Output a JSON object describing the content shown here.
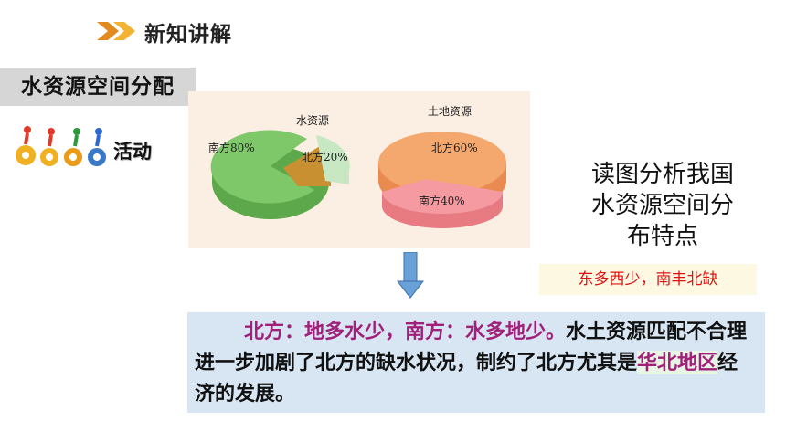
{
  "header": {
    "title": "新知讲解",
    "arrow_icon": "double-chevron-right-icon"
  },
  "section": {
    "label": "水资源空间分配"
  },
  "activity": {
    "label": "活动",
    "icon": "running-gears-icon"
  },
  "charts": {
    "water": {
      "title": "水资源",
      "slices": [
        {
          "label": "南方80%",
          "value": 80,
          "color": "#7ec86a"
        },
        {
          "label": "北方20%",
          "value": 20,
          "color": "#c8e8c4"
        }
      ],
      "pull_color": "#c89030"
    },
    "land": {
      "title": "土地资源",
      "slices": [
        {
          "label": "北方60%",
          "value": 60,
          "color": "#f5a86e"
        },
        {
          "label": "南方40%",
          "value": 40,
          "color": "#f49aa0"
        }
      ]
    }
  },
  "question": {
    "text": "读图分析我国水资源空间分布特点"
  },
  "answer": {
    "text": "东多西少，南丰北缺"
  },
  "summary": {
    "highlight": "北方：地多水少，南方：水多地少。",
    "text1": "水土资源匹配不合理进一步加剧了北方的缺水状况，制约了北方尤其是",
    "region": "华北地区",
    "text2": "经济的发展。"
  },
  "colors": {
    "accent": "#a0207a",
    "answer_red": "#dd1111",
    "panel_bg": "#fbeee2",
    "summary_bg": "#d8e6f3"
  }
}
